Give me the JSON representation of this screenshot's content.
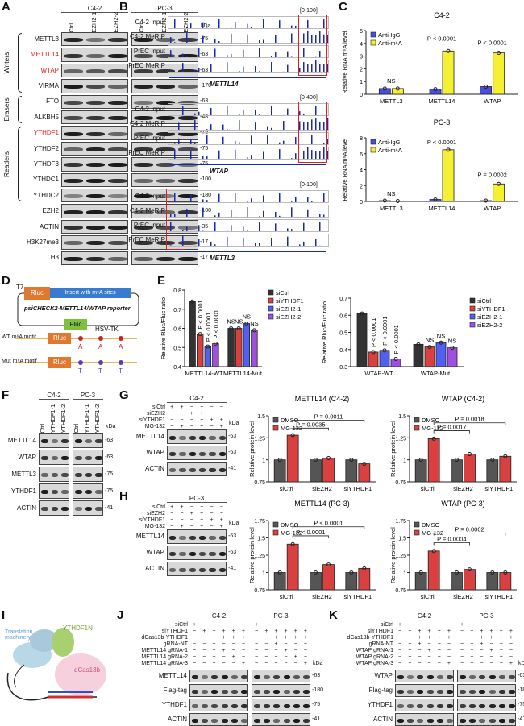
{
  "panels": {
    "A": "A",
    "B": "B",
    "C": "C",
    "D": "D",
    "E": "E",
    "F": "F",
    "G": "G",
    "H": "H",
    "I": "I",
    "J": "J",
    "K": "K"
  },
  "blots": {
    "A": {
      "groups": [
        {
          "label": "C4-2",
          "lanes": 3
        },
        {
          "label": "PC-3",
          "lanes": 3
        }
      ],
      "lane_labels": [
        "siCtrl",
        "siEZH2-1",
        "siEZH2-2",
        "siCtrl",
        "siEZH2-1",
        "siEZH2-2"
      ],
      "kda_label": "kDa",
      "categories": [
        {
          "label": "Writers",
          "from": 0,
          "to": 3
        },
        {
          "label": "Erasers",
          "from": 4,
          "to": 5
        },
        {
          "label": "Readers",
          "from": 6,
          "to": 10
        }
      ],
      "rows": [
        {
          "label": "METTL3",
          "kda": "75"
        },
        {
          "label": "METTL14",
          "kda": "63",
          "highlight": "#e02020"
        },
        {
          "label": "WTAP",
          "kda": "63",
          "highlight": "#e02020"
        },
        {
          "label": "VIRMA",
          "kda": "170"
        },
        {
          "label": "FTO",
          "kda": "63"
        },
        {
          "label": "ALKBH5",
          "kda": "48"
        },
        {
          "label": "YTHDF1",
          "kda": "75",
          "highlight": "#e02020"
        },
        {
          "label": "YTHDF2",
          "kda": "75"
        },
        {
          "label": "YTHDF3",
          "kda": "75"
        },
        {
          "label": "YTHDC1",
          "kda": "100"
        },
        {
          "label": "YTHDC2",
          "kda": "180"
        },
        {
          "label": "EZH2",
          "kda": "100"
        },
        {
          "label": "ACTIN",
          "kda": "35"
        },
        {
          "label": "H3K27me3",
          "kda": "17"
        },
        {
          "label": "H3",
          "kda": "17"
        }
      ]
    },
    "F": {
      "groups": [
        {
          "label": "C4-2",
          "lanes": 3
        },
        {
          "label": "PC-3",
          "lanes": 3
        }
      ],
      "lane_labels": [
        "siCtrl",
        "siYTHDF1-1",
        "siYTHDF1-2",
        "siCtrl",
        "siYTHDF1-1",
        "siYTHDF1-2"
      ],
      "kda_label": "kDa",
      "rows": [
        {
          "label": "METTL14",
          "kda": "63"
        },
        {
          "label": "WTAP",
          "kda": "63"
        },
        {
          "label": "METTL3",
          "kda": "75"
        },
        {
          "label": "YTHDF1",
          "kda": "75"
        },
        {
          "label": "ACTIN",
          "kda": "41"
        }
      ]
    },
    "G": {
      "groups": [
        {
          "label": "C4-2",
          "lanes": 6
        }
      ],
      "kda_label": "kDa",
      "conditions": [
        {
          "label": "siCtrl",
          "values": [
            "+",
            "+",
            "−",
            "−",
            "−",
            "−"
          ]
        },
        {
          "label": "siEZH2",
          "values": [
            "−",
            "−",
            "+",
            "+",
            "−",
            "−"
          ]
        },
        {
          "label": "siYTHDF1",
          "values": [
            "−",
            "−",
            "−",
            "−",
            "+",
            "+"
          ]
        },
        {
          "label": "MG-132",
          "values": [
            "−",
            "+",
            "−",
            "+",
            "−",
            "+"
          ]
        }
      ],
      "rows": [
        {
          "label": "METTL14",
          "kda": "63"
        },
        {
          "label": "WTAP",
          "kda": "63"
        },
        {
          "label": "ACTIN",
          "kda": "41"
        }
      ]
    },
    "H": {
      "groups": [
        {
          "label": "PC-3",
          "lanes": 6
        }
      ],
      "kda_label": "kDa",
      "conditions": [
        {
          "label": "siCtrl",
          "values": [
            "+",
            "+",
            "−",
            "−",
            "−",
            "−"
          ]
        },
        {
          "label": "siEZH2",
          "values": [
            "−",
            "−",
            "+",
            "+",
            "−",
            "−"
          ]
        },
        {
          "label": "siYTHDF1",
          "values": [
            "−",
            "−",
            "−",
            "−",
            "+",
            "+"
          ]
        },
        {
          "label": "MG-132",
          "values": [
            "−",
            "+",
            "−",
            "+",
            "−",
            "+"
          ]
        }
      ],
      "rows": [
        {
          "label": "METTL14",
          "kda": "63"
        },
        {
          "label": "WTAP",
          "kda": "63"
        },
        {
          "label": "ACTIN",
          "kda": "41"
        }
      ]
    },
    "J": {
      "groups": [
        {
          "label": "C4-2",
          "lanes": 6
        },
        {
          "label": "PC-3",
          "lanes": 6
        }
      ],
      "kda_label": "kDa",
      "conditions": [
        {
          "label": "siCtrl",
          "values": [
            "+",
            "−",
            "−",
            "−",
            "−",
            "−",
            "+",
            "−",
            "−",
            "−",
            "−",
            "−"
          ]
        },
        {
          "label": "siYTHDF1",
          "values": [
            "−",
            "+",
            "+",
            "+",
            "+",
            "+",
            "−",
            "+",
            "+",
            "+",
            "+",
            "+"
          ]
        },
        {
          "label": "dCas13b-YTHDF1",
          "values": [
            "−",
            "−",
            "+",
            "+",
            "+",
            "+",
            "−",
            "−",
            "+",
            "+",
            "+",
            "+"
          ]
        },
        {
          "label": "gRNA-NT",
          "values": [
            "−",
            "−",
            "+",
            "−",
            "−",
            "−",
            "−",
            "−",
            "+",
            "−",
            "−",
            "−"
          ]
        },
        {
          "label": "METTL14 gRNA-1",
          "values": [
            "−",
            "−",
            "−",
            "+",
            "−",
            "−",
            "−",
            "−",
            "−",
            "+",
            "−",
            "−"
          ]
        },
        {
          "label": "METTL14 gRNA-2",
          "values": [
            "−",
            "−",
            "−",
            "−",
            "+",
            "−",
            "−",
            "−",
            "−",
            "−",
            "+",
            "−"
          ]
        },
        {
          "label": "METTL14 gRNA-3",
          "values": [
            "−",
            "−",
            "−",
            "−",
            "−",
            "+",
            "−",
            "−",
            "−",
            "−",
            "−",
            "+"
          ]
        }
      ],
      "rows": [
        {
          "label": "METTL14",
          "kda": "63"
        },
        {
          "label": "Flag-tag",
          "kda": "180"
        },
        {
          "label": "YTHDF1",
          "kda": "75"
        },
        {
          "label": "ACTIN",
          "kda": "41"
        }
      ]
    },
    "K": {
      "groups": [
        {
          "label": "C4-2",
          "lanes": 6
        },
        {
          "label": "PC-3",
          "lanes": 6
        }
      ],
      "kda_label": "kDa",
      "conditions": [
        {
          "label": "siCtrl",
          "values": [
            "+",
            "−",
            "−",
            "−",
            "−",
            "−",
            "+",
            "−",
            "−",
            "−",
            "−",
            "−"
          ]
        },
        {
          "label": "siYTHDF1",
          "values": [
            "−",
            "+",
            "+",
            "+",
            "+",
            "+",
            "−",
            "+",
            "+",
            "+",
            "+",
            "+"
          ]
        },
        {
          "label": "dCas13b-YTHDF1",
          "values": [
            "−",
            "−",
            "+",
            "+",
            "+",
            "+",
            "−",
            "−",
            "+",
            "+",
            "+",
            "+"
          ]
        },
        {
          "label": "gRNA-NT",
          "values": [
            "−",
            "−",
            "+",
            "−",
            "−",
            "−",
            "−",
            "−",
            "+",
            "−",
            "−",
            "−"
          ]
        },
        {
          "label": "WTAP gRNA-1",
          "values": [
            "−",
            "−",
            "−",
            "+",
            "−",
            "−",
            "−",
            "−",
            "−",
            "+",
            "−",
            "−"
          ]
        },
        {
          "label": "WTAP gRNA-2",
          "values": [
            "−",
            "−",
            "−",
            "−",
            "+",
            "−",
            "−",
            "−",
            "−",
            "−",
            "+",
            "−"
          ]
        },
        {
          "label": "WTAP gRNA-3",
          "values": [
            "−",
            "−",
            "−",
            "−",
            "−",
            "+",
            "−",
            "−",
            "−",
            "−",
            "−",
            "+"
          ]
        }
      ],
      "rows": [
        {
          "label": "WTAP",
          "kda": "63"
        },
        {
          "label": "Flag-tag",
          "kda": "180"
        },
        {
          "label": "YTHDF1",
          "kda": "75"
        },
        {
          "label": "ACTIN",
          "kda": "41"
        }
      ]
    }
  },
  "tracks": {
    "blocks": [
      {
        "gene": "METTL14",
        "range": "[0-100]",
        "labels": [
          "C4-2 Input",
          "C4-2 MeRIP",
          "PrEC Input",
          "PrEC MeRIP"
        ]
      },
      {
        "gene": "WTAP",
        "range": "[0-400]",
        "labels": [
          "C4-2 Input",
          "C4-2 MeRIP",
          "PrEC Input",
          "PrEC MeRIP"
        ]
      },
      {
        "gene": "METTL3",
        "range": "[0-100]",
        "labels": [
          "C4-2 Input",
          "C4-2 MeRIP",
          "PrEC Input",
          "PrEC MeRIP"
        ]
      }
    ],
    "color": "#1a2ab0",
    "highlight": "#e02020"
  },
  "diagram_D": {
    "t7": "T7",
    "rluc": "Rluc",
    "insert": "Insert with m⁶A sites",
    "reporter": "psiCHECK2-METTL14/WTAP reporter",
    "fluc": "Fluc",
    "hsv": "HSV-TK",
    "wt": "WT m⁶A motif",
    "mut": "Mut m⁶A motif",
    "wt_bases": [
      "A",
      "A",
      "A"
    ],
    "mut_bases": [
      "T",
      "T",
      "T"
    ],
    "rluc_color": "#e07830",
    "fluc_color": "#80c040",
    "insert_color": "#3a7ad0"
  },
  "diagram_I": {
    "translation": "Translation machinery",
    "ythdf1n": "YTHDF1N",
    "dcas": "dCas13b"
  },
  "chart_data": [
    {
      "id": "C1",
      "type": "bar",
      "title": "C4-2",
      "ylabel": "Relative RNA m⁶A level",
      "categories": [
        "METTL3",
        "METTL14",
        "WTAP"
      ],
      "ylim": [
        0,
        5
      ],
      "yticks": [
        0,
        1,
        2,
        3,
        4,
        5
      ],
      "legend": "top-left",
      "series": [
        {
          "name": "Anti-IgG",
          "color": "#4a4ee0",
          "values": [
            0.45,
            0.4,
            0.6
          ]
        },
        {
          "name": "Anti-m⁶A",
          "color": "#f5f032",
          "values": [
            0.45,
            3.4,
            3.25
          ]
        }
      ],
      "annotations": [
        {
          "text": "NS",
          "category": 0,
          "y": 0.9
        },
        {
          "text": "P < 0.0001",
          "category": 1,
          "y": 4.2
        },
        {
          "text": "P < 0.0001",
          "category": 2,
          "y": 3.9
        }
      ]
    },
    {
      "id": "C2",
      "type": "bar",
      "title": "PC-3",
      "ylabel": "Relative RNA m⁶A level",
      "categories": [
        "METTL3",
        "METTL14",
        "WTAP"
      ],
      "ylim": [
        0,
        8
      ],
      "yticks": [
        0,
        2,
        4,
        6,
        8
      ],
      "legend": "top-left",
      "series": [
        {
          "name": "Anti-IgG",
          "color": "#4a4ee0",
          "values": [
            0.1,
            0.25,
            0.1
          ]
        },
        {
          "name": "Anti-m⁶A",
          "color": "#f5f032",
          "values": [
            0.05,
            6.5,
            2.2
          ]
        }
      ],
      "annotations": [
        {
          "text": "NS",
          "category": 0,
          "y": 0.7
        },
        {
          "text": "P < 0.0001",
          "category": 1,
          "y": 7.2
        },
        {
          "text": "P = 0.0002",
          "category": 2,
          "y": 3.1
        }
      ]
    },
    {
      "id": "E1",
      "type": "bar",
      "title": "",
      "ylabel": "Relative Rluc/Fluc ratio",
      "categories": [
        "METTL14-WT",
        "METTL14-Mut"
      ],
      "ylim": [
        0.4,
        0.8
      ],
      "yticks": [
        0.4,
        0.5,
        0.6,
        0.7,
        0.8
      ],
      "legend": "top-right",
      "series": [
        {
          "name": "siCtrl",
          "color": "#333333",
          "values": [
            0.74,
            0.6
          ]
        },
        {
          "name": "siYTHDF1",
          "color": "#d94040",
          "values": [
            0.57,
            0.6
          ]
        },
        {
          "name": "siEZH2-1",
          "color": "#5060f0",
          "values": [
            0.505,
            0.625
          ]
        },
        {
          "name": "siEZH2-2",
          "color": "#a050e0",
          "values": [
            0.52,
            0.59
          ]
        }
      ],
      "bar_labels": [
        [
          null,
          "NS"
        ],
        [
          "P < 0.0001",
          "NS"
        ],
        [
          "P < 0.0001",
          "NS"
        ],
        [
          "P < 0.0001",
          "NS"
        ]
      ]
    },
    {
      "id": "E2",
      "type": "bar",
      "title": "",
      "ylabel": "Relative Rluc/Fluc ratio",
      "categories": [
        "WTAP-WT",
        "WTAP-Mut"
      ],
      "ylim": [
        0.3,
        0.7
      ],
      "yticks": [
        0.3,
        0.4,
        0.5,
        0.6,
        0.7
      ],
      "legend": "top-right",
      "series": [
        {
          "name": "siCtrl",
          "color": "#333333",
          "values": [
            0.61,
            0.43
          ]
        },
        {
          "name": "siYTHDF1",
          "color": "#d94040",
          "values": [
            0.385,
            0.415
          ]
        },
        {
          "name": "siEZH2-1",
          "color": "#5060f0",
          "values": [
            0.395,
            0.44
          ]
        },
        {
          "name": "siEZH2-2",
          "color": "#a050e0",
          "values": [
            0.345,
            0.41
          ]
        }
      ],
      "bar_labels": [
        [
          null,
          null
        ],
        [
          "P < 0.0001",
          "NS"
        ],
        [
          "P < 0.0001",
          "NS"
        ],
        [
          "P < 0.0001",
          "NS"
        ]
      ]
    },
    {
      "id": "G1",
      "type": "bar",
      "title": "METTL14 (C4-2)",
      "ylabel": "Relative protein level",
      "categories": [
        "siCtrl",
        "siEZH2",
        "siYTHDF1"
      ],
      "ylim": [
        0.75,
        1.5
      ],
      "yticks": [
        0.75,
        1.0,
        1.25,
        1.5
      ],
      "legend": "top-left",
      "series": [
        {
          "name": "DMSO",
          "color": "#555555",
          "values": [
            1,
            1,
            1
          ]
        },
        {
          "name": "MG-132",
          "color": "#d94040",
          "values": [
            1.28,
            1.02,
            0.955
          ]
        }
      ],
      "brackets": [
        {
          "text": "P = 0.0035",
          "from": 0,
          "to": 1,
          "y": 1.36
        },
        {
          "text": "P = 0.0011",
          "from": 0,
          "to": 2,
          "y": 1.45
        }
      ]
    },
    {
      "id": "G2",
      "type": "bar",
      "title": "WTAP (C4-2)",
      "ylabel": "Relative protein level",
      "categories": [
        "siCtrl",
        "siEZH2",
        "siYTHDF1"
      ],
      "ylim": [
        0.75,
        1.5
      ],
      "yticks": [
        0.75,
        1.0,
        1.25,
        1.5
      ],
      "legend": "top-left",
      "series": [
        {
          "name": "DMSO",
          "color": "#555555",
          "values": [
            1,
            1,
            1
          ]
        },
        {
          "name": "MG-132",
          "color": "#d94040",
          "values": [
            1.24,
            1.065,
            1.04
          ]
        }
      ],
      "brackets": [
        {
          "text": "P = 0.0017",
          "from": 0,
          "to": 1,
          "y": 1.33
        },
        {
          "text": "P = 0.0018",
          "from": 0,
          "to": 2,
          "y": 1.42
        }
      ]
    },
    {
      "id": "H1",
      "type": "bar",
      "title": "METTL14 (PC-3)",
      "ylabel": "Relative protein level",
      "categories": [
        "siCtrl",
        "siEZH2",
        "siYTHDF1"
      ],
      "ylim": [
        0.75,
        1.75
      ],
      "yticks": [
        0.75,
        1.0,
        1.25,
        1.5,
        1.75
      ],
      "legend": "top-left",
      "series": [
        {
          "name": "DMSO",
          "color": "#555555",
          "values": [
            1,
            1,
            1
          ]
        },
        {
          "name": "MG-132",
          "color": "#d94040",
          "values": [
            1.41,
            1.115,
            1.06
          ]
        }
      ],
      "brackets": [
        {
          "text": "P < 0.0001",
          "from": 0,
          "to": 1,
          "y": 1.53
        },
        {
          "text": "P < 0.0001",
          "from": 0,
          "to": 2,
          "y": 1.66
        }
      ]
    },
    {
      "id": "H2",
      "type": "bar",
      "title": "WTAP (PC-3)",
      "ylabel": "Relative protein level",
      "categories": [
        "siCtrl",
        "siEZH2",
        "siYTHDF1"
      ],
      "ylim": [
        0.75,
        1.75
      ],
      "yticks": [
        0.75,
        1.0,
        1.25,
        1.5,
        1.75
      ],
      "legend": "top-left",
      "series": [
        {
          "name": "DMSO",
          "color": "#555555",
          "values": [
            1,
            1,
            1
          ]
        },
        {
          "name": "MG-132",
          "color": "#d94040",
          "values": [
            1.31,
            1.045,
            1.0
          ]
        }
      ],
      "brackets": [
        {
          "text": "P = 0.0004",
          "from": 0,
          "to": 1,
          "y": 1.43
        },
        {
          "text": "P = 0.0002",
          "from": 0,
          "to": 2,
          "y": 1.57
        }
      ]
    }
  ]
}
